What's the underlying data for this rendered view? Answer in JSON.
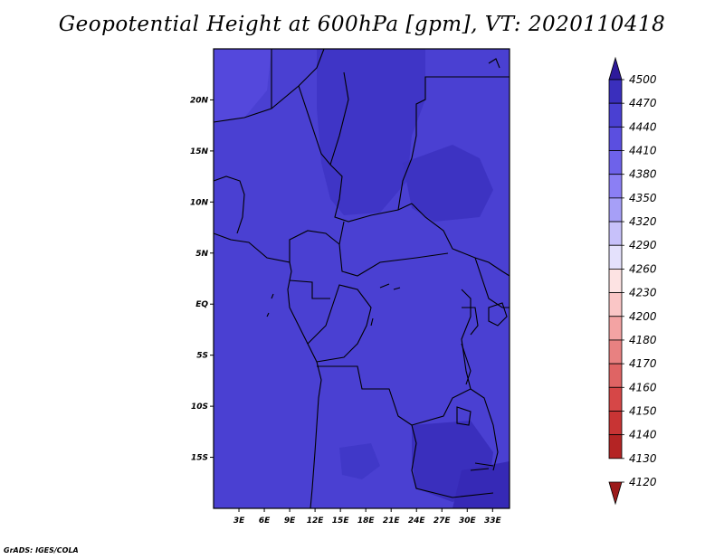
{
  "title": "Geopotential Height at 600hPa [gpm], VT: 2020110418",
  "footer": "GrADS: IGES/COLA",
  "map": {
    "lon_range": [
      0,
      35
    ],
    "lat_range": [
      -20,
      25
    ],
    "x_ticks": [
      "3E",
      "6E",
      "9E",
      "12E",
      "15E",
      "18E",
      "21E",
      "24E",
      "27E",
      "30E",
      "33E"
    ],
    "x_tick_values": [
      3,
      6,
      9,
      12,
      15,
      18,
      21,
      24,
      27,
      30,
      33
    ],
    "y_ticks": [
      "20N",
      "15N",
      "10N",
      "5N",
      "EQ",
      "5S",
      "10S",
      "15S"
    ],
    "y_tick_values": [
      20,
      15,
      10,
      5,
      0,
      -5,
      -10,
      -15
    ],
    "base_color": "#4a40d2",
    "higher_color": "#3a2fbd",
    "lower_color": "#5b4fe0"
  },
  "colorbar": {
    "labels": [
      "4500",
      "4470",
      "4440",
      "4410",
      "4380",
      "4350",
      "4320",
      "4290",
      "4260",
      "4230",
      "4200",
      "4180",
      "4170",
      "4160",
      "4150",
      "4140",
      "4130",
      "4120"
    ],
    "colors": [
      "#2e1a9a",
      "#3a2fbd",
      "#4a40d2",
      "#5b4fe0",
      "#6e62ea",
      "#8b7ff4",
      "#a69ff7",
      "#c7c1fa",
      "#e4e1fc",
      "#fde3e3",
      "#fac6c6",
      "#f3a3a3",
      "#e88181",
      "#df6464",
      "#d64747",
      "#c83434",
      "#b42424",
      "#9c1a1a"
    ]
  }
}
